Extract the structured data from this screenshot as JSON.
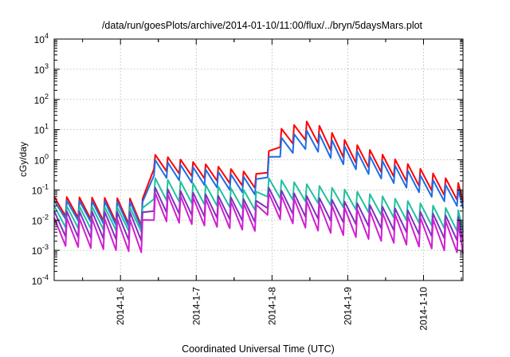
{
  "chart_data": {
    "type": "line",
    "title": "/data/run/goesPlots/archive/2014-01-10/11:00/flux/../bryn/5daysMars.plot",
    "xlabel": "Coordinated Universal Time (UTC)",
    "ylabel": "cGy/day",
    "yscale": "log",
    "ylim": [
      0.0001,
      10000
    ],
    "xlim": [
      "2014-01-05 03:00",
      "2014-01-10 12:30"
    ],
    "grid": true,
    "y_ticks": [
      {
        "base": "10",
        "exp": "-4"
      },
      {
        "base": "10",
        "exp": "-3"
      },
      {
        "base": "10",
        "exp": "-2"
      },
      {
        "base": "10",
        "exp": "-1"
      },
      {
        "base": "10",
        "exp": "0"
      },
      {
        "base": "10",
        "exp": "1"
      },
      {
        "base": "10",
        "exp": "2"
      },
      {
        "base": "10",
        "exp": "3"
      },
      {
        "base": "10",
        "exp": "4"
      }
    ],
    "x_ticks": [
      "2014-1-6",
      "2014-1-7",
      "2014-1-8",
      "2014-1-9",
      "2014-1-10"
    ],
    "x_tick_dates": [
      "2014-01-06 00:00",
      "2014-01-07 00:00",
      "2014-01-08 00:00",
      "2014-01-09 00:00",
      "2014-01-10 00:00"
    ],
    "sawtooth_period_hours": 4,
    "series": [
      {
        "color": "#ff0000",
        "envelope_x": [
          "2014-01-05 03:00",
          "2014-01-06 10:00",
          "2014-01-06 10:30",
          "2014-01-07 22:00",
          "2014-01-07 22:30",
          "2014-01-08 02:00",
          "2014-01-08 12:00",
          "2014-01-09 00:00",
          "2014-01-10 12:30"
        ],
        "peak": [
          0.06,
          0.05,
          1.5,
          0.3,
          1.5,
          10,
          20,
          4,
          0.15
        ],
        "trough": [
          0.015,
          0.006,
          0.5,
          0.1,
          0.35,
          2.5,
          5,
          1,
          0.04
        ]
      },
      {
        "color": "#1e6ee6",
        "envelope_x": [
          "2014-01-05 03:00",
          "2014-01-06 10:00",
          "2014-01-06 10:30",
          "2014-01-07 22:00",
          "2014-01-07 22:30",
          "2014-01-08 02:00",
          "2014-01-08 12:00",
          "2014-01-09 00:00",
          "2014-01-10 12:30"
        ],
        "peak": [
          0.045,
          0.04,
          1.0,
          0.2,
          1.0,
          5,
          10,
          2.5,
          0.09
        ],
        "trough": [
          0.012,
          0.005,
          0.3,
          0.06,
          0.25,
          1.2,
          2.5,
          0.6,
          0.025
        ]
      },
      {
        "color": "#20c0a0",
        "envelope_x": [
          "2014-01-05 03:00",
          "2014-01-06 10:00",
          "2014-01-06 10:30",
          "2014-01-07 22:00",
          "2014-01-07 22:30",
          "2014-01-08 12:00",
          "2014-01-09 00:00",
          "2014-01-10 12:30"
        ],
        "peak": [
          0.03,
          0.025,
          0.25,
          0.08,
          0.25,
          0.15,
          0.1,
          0.02
        ],
        "trough": [
          0.006,
          0.004,
          0.05,
          0.02,
          0.06,
          0.04,
          0.025,
          0.004
        ]
      },
      {
        "color": "#8030c0",
        "envelope_x": [
          "2014-01-05 03:00",
          "2014-01-06 10:00",
          "2014-01-06 10:30",
          "2014-01-07 22:00",
          "2014-01-07 22:30",
          "2014-01-08 12:00",
          "2014-01-09 00:00",
          "2014-01-10 12:30"
        ],
        "peak": [
          0.02,
          0.018,
          0.12,
          0.04,
          0.12,
          0.06,
          0.04,
          0.012
        ],
        "trough": [
          0.003,
          0.002,
          0.02,
          0.008,
          0.025,
          0.012,
          0.008,
          0.002
        ]
      },
      {
        "color": "#d020d0",
        "envelope_x": [
          "2014-01-05 03:00",
          "2014-01-06 10:00",
          "2014-01-06 10:30",
          "2014-01-07 22:00",
          "2014-01-07 22:30",
          "2014-01-08 12:00",
          "2014-01-09 00:00",
          "2014-01-10 12:30"
        ],
        "peak": [
          0.012,
          0.01,
          0.08,
          0.03,
          0.08,
          0.04,
          0.025,
          0.008
        ],
        "trough": [
          0.0015,
          0.0008,
          0.01,
          0.004,
          0.015,
          0.005,
          0.003,
          0.0008
        ]
      }
    ]
  }
}
